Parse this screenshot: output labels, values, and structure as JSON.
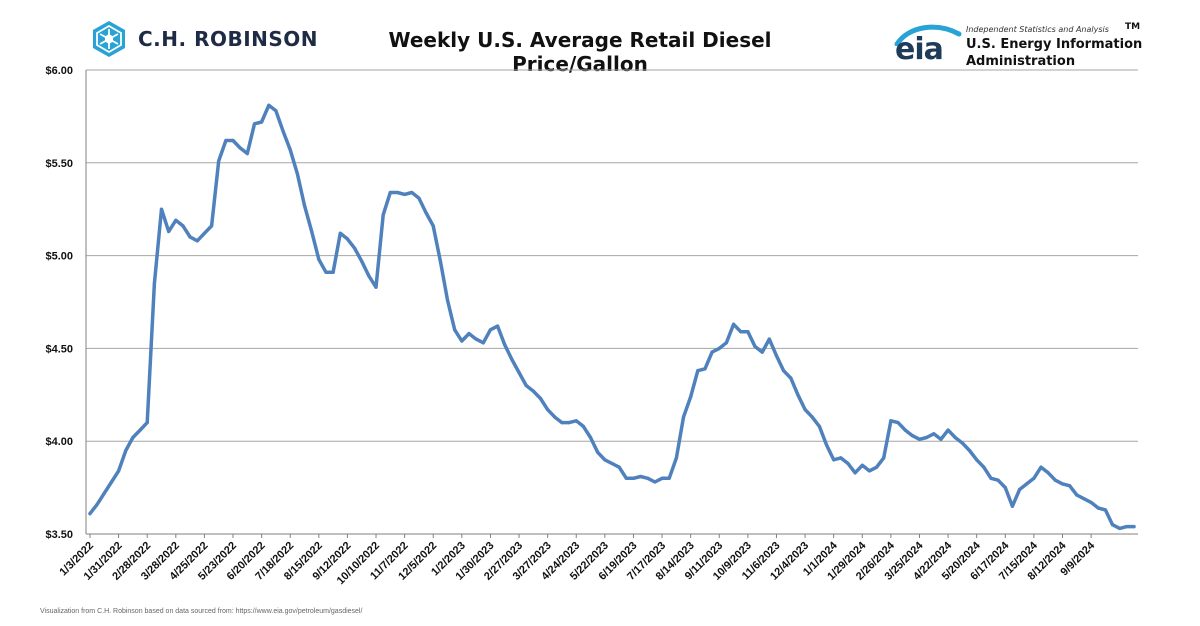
{
  "header": {
    "brand_name": "C.H. ROBINSON",
    "title": "Weekly U.S. Average Retail Diesel Price/Gallon",
    "eia_word": "eia",
    "eia_tagline": "Independent Statistics and Analysis",
    "eia_tm": "TM",
    "eia_name_line1": "U.S. Energy Information",
    "eia_name_line2": "Administration"
  },
  "footer": {
    "source_note": "Visualization from C.H. Robinson based on data sourced from: https://www.eia.gov/petroleum/gasdiesel/"
  },
  "colors": {
    "line": "#4f81bd",
    "gridline": "#a6a6a6",
    "brand_accent": "#29a3d6",
    "eia_blue": "#1f3b5a"
  },
  "icons": [
    "ch-robinson-logo-icon",
    "eia-logo-swoosh-icon"
  ],
  "chart_data": {
    "type": "line",
    "title": "Weekly U.S. Average Retail Diesel Price/Gallon",
    "xlabel": "",
    "ylabel": "",
    "ylim": [
      3.5,
      6.0
    ],
    "yticks": [
      "$3.50",
      "$4.00",
      "$4.50",
      "$5.00",
      "$5.50",
      "$6.00"
    ],
    "ytick_values": [
      3.5,
      4.0,
      4.5,
      5.0,
      5.5,
      6.0
    ],
    "grid": "horizontal",
    "legend": "none",
    "x_tick_labels": [
      "1/3/2022",
      "1/31/2022",
      "2/28/2022",
      "3/28/2022",
      "4/25/2022",
      "5/23/2022",
      "6/20/2022",
      "7/18/2022",
      "8/15/2022",
      "9/12/2022",
      "10/10/2022",
      "11/7/2022",
      "12/5/2022",
      "1/2/2023",
      "1/30/2023",
      "2/27/2023",
      "3/27/2023",
      "4/24/2023",
      "5/22/2023",
      "6/19/2023",
      "7/17/2023",
      "8/14/2023",
      "9/11/2023",
      "10/9/2023",
      "11/6/2023",
      "12/4/2023",
      "1/1/2024",
      "1/29/2024",
      "2/26/2024",
      "3/25/2024",
      "4/22/2024",
      "5/20/2024",
      "6/17/2024",
      "7/15/2024",
      "8/12/2024",
      "9/9/2024"
    ],
    "series": [
      {
        "values": [
          3.61,
          3.66,
          3.72,
          3.78,
          3.84,
          3.95,
          4.02,
          4.06,
          4.1,
          4.85,
          5.25,
          5.13,
          5.19,
          5.16,
          5.1,
          5.08,
          5.12,
          5.16,
          5.51,
          5.62,
          5.62,
          5.58,
          5.55,
          5.71,
          5.72,
          5.81,
          5.78,
          5.67,
          5.57,
          5.44,
          5.27,
          5.13,
          4.98,
          4.91,
          4.91,
          5.12,
          5.09,
          5.04,
          4.97,
          4.89,
          4.83,
          5.22,
          5.34,
          5.34,
          5.33,
          5.34,
          5.31,
          5.23,
          5.16,
          4.97,
          4.76,
          4.6,
          4.54,
          4.58,
          4.55,
          4.53,
          4.6,
          4.62,
          4.52,
          4.44,
          4.37,
          4.3,
          4.27,
          4.23,
          4.17,
          4.13,
          4.1,
          4.1,
          4.11,
          4.08,
          4.02,
          3.94,
          3.9,
          3.88,
          3.86,
          3.8,
          3.8,
          3.81,
          3.8,
          3.78,
          3.8,
          3.8,
          3.91,
          4.13,
          4.24,
          4.38,
          4.39,
          4.48,
          4.5,
          4.53,
          4.63,
          4.59,
          4.59,
          4.51,
          4.48,
          4.55,
          4.46,
          4.38,
          4.34,
          4.25,
          4.17,
          4.13,
          4.08,
          3.98,
          3.9,
          3.91,
          3.88,
          3.83,
          3.87,
          3.84,
          3.86,
          3.91,
          4.11,
          4.1,
          4.06,
          4.03,
          4.01,
          4.02,
          4.04,
          4.01,
          4.06,
          4.02,
          3.99,
          3.95,
          3.9,
          3.86,
          3.8,
          3.79,
          3.75,
          3.65,
          3.74,
          3.77,
          3.8,
          3.86,
          3.83,
          3.79,
          3.77,
          3.76,
          3.71,
          3.69,
          3.67,
          3.64,
          3.63,
          3.55,
          3.53,
          3.54,
          3.54
        ]
      }
    ]
  }
}
